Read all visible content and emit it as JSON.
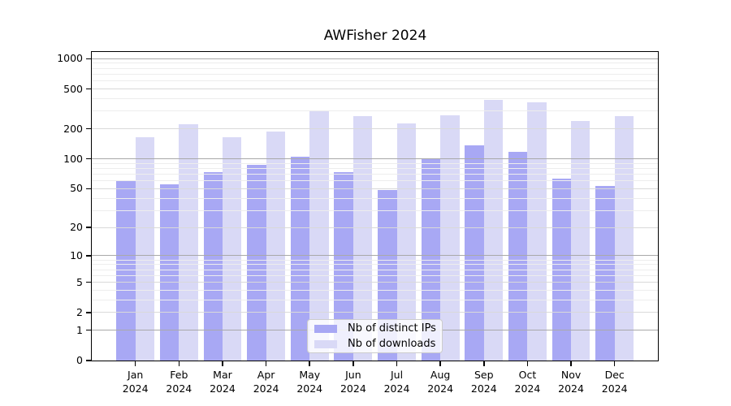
{
  "title": "AWFisher 2024",
  "colors": {
    "ips_bar": "#a8a8f4",
    "downloads_bar": "#d9d9f6",
    "grid_major": "#a9a9a9",
    "grid_mid": "#d9d9d9",
    "grid_minor": "#ededed",
    "axis": "#000000"
  },
  "legend": {
    "items": [
      {
        "label": "Nb of distinct IPs",
        "color": "#a8a8f4"
      },
      {
        "label": "Nb of downloads",
        "color": "#d9d9f6"
      }
    ]
  },
  "chart_data": {
    "type": "bar",
    "title": "AWFisher 2024",
    "categories": [
      "Jan 2024",
      "Feb 2024",
      "Mar 2024",
      "Apr 2024",
      "May 2024",
      "Jun 2024",
      "Jul 2024",
      "Aug 2024",
      "Sep 2024",
      "Oct 2024",
      "Nov 2024",
      "Dec 2024"
    ],
    "series": [
      {
        "name": "Nb of distinct IPs",
        "color": "#a8a8f4",
        "values": [
          60,
          55,
          74,
          88,
          106,
          74,
          49,
          100,
          138,
          117,
          63,
          53
        ]
      },
      {
        "name": "Nb of downloads",
        "color": "#d9d9f6",
        "values": [
          165,
          221,
          165,
          187,
          307,
          266,
          228,
          273,
          391,
          365,
          238,
          268
        ]
      }
    ],
    "xlabel": "",
    "ylabel": "",
    "y_scale": "log10(value+1)",
    "y_tick_values": [
      0,
      1,
      2,
      5,
      10,
      20,
      50,
      100,
      200,
      500,
      1000
    ],
    "ylim": [
      0,
      1147
    ],
    "grid": "on, drawn above bars; darker lines at decades 1/10/100/1000",
    "legend_position": "lower center inside plot"
  }
}
